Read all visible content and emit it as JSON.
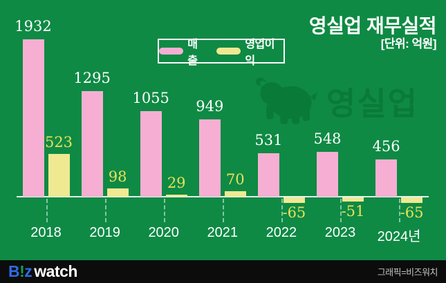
{
  "header": {
    "title": "영실업 재무실적",
    "subtitle": "[단위: 억원]"
  },
  "legend": {
    "items": [
      {
        "label": "매출",
        "color": "#f6afd3"
      },
      {
        "label": "영업이익",
        "color": "#efe992"
      }
    ]
  },
  "watermark": {
    "icon": "elephant-icon",
    "text": "영실업",
    "color": "#0a7a39"
  },
  "chart_data": {
    "type": "bar",
    "title": "영실업 재무실적",
    "unit": "억원",
    "categories": [
      "2018",
      "2019",
      "2020",
      "2021",
      "2022",
      "2023",
      "2024년"
    ],
    "series": [
      {
        "name": "매출",
        "color": "#f6afd3",
        "label_color": "#ffffff",
        "values": [
          1932,
          1295,
          1055,
          949,
          531,
          548,
          456
        ]
      },
      {
        "name": "영업이익",
        "color": "#efe992",
        "label_color": "#e9e05a",
        "values": [
          523,
          98,
          29,
          70,
          -65,
          -51,
          -65
        ]
      }
    ],
    "ylim": [
      -100,
      2000
    ],
    "baseline": 0,
    "grid": false,
    "legend_position": "top-center"
  },
  "footer": {
    "logo": {
      "b": "B",
      "bang": "!",
      "z": "z",
      "watch": "watch"
    },
    "credit": "그래픽=비즈워치"
  },
  "colors": {
    "background": "#0e8a44",
    "watermark": "#0a7a39",
    "revenue_bar": "#f6afd3",
    "profit_bar": "#efe992",
    "profit_label": "#e9e05a",
    "logo_blue": "#2e6be4",
    "logo_green": "#12a14b"
  }
}
